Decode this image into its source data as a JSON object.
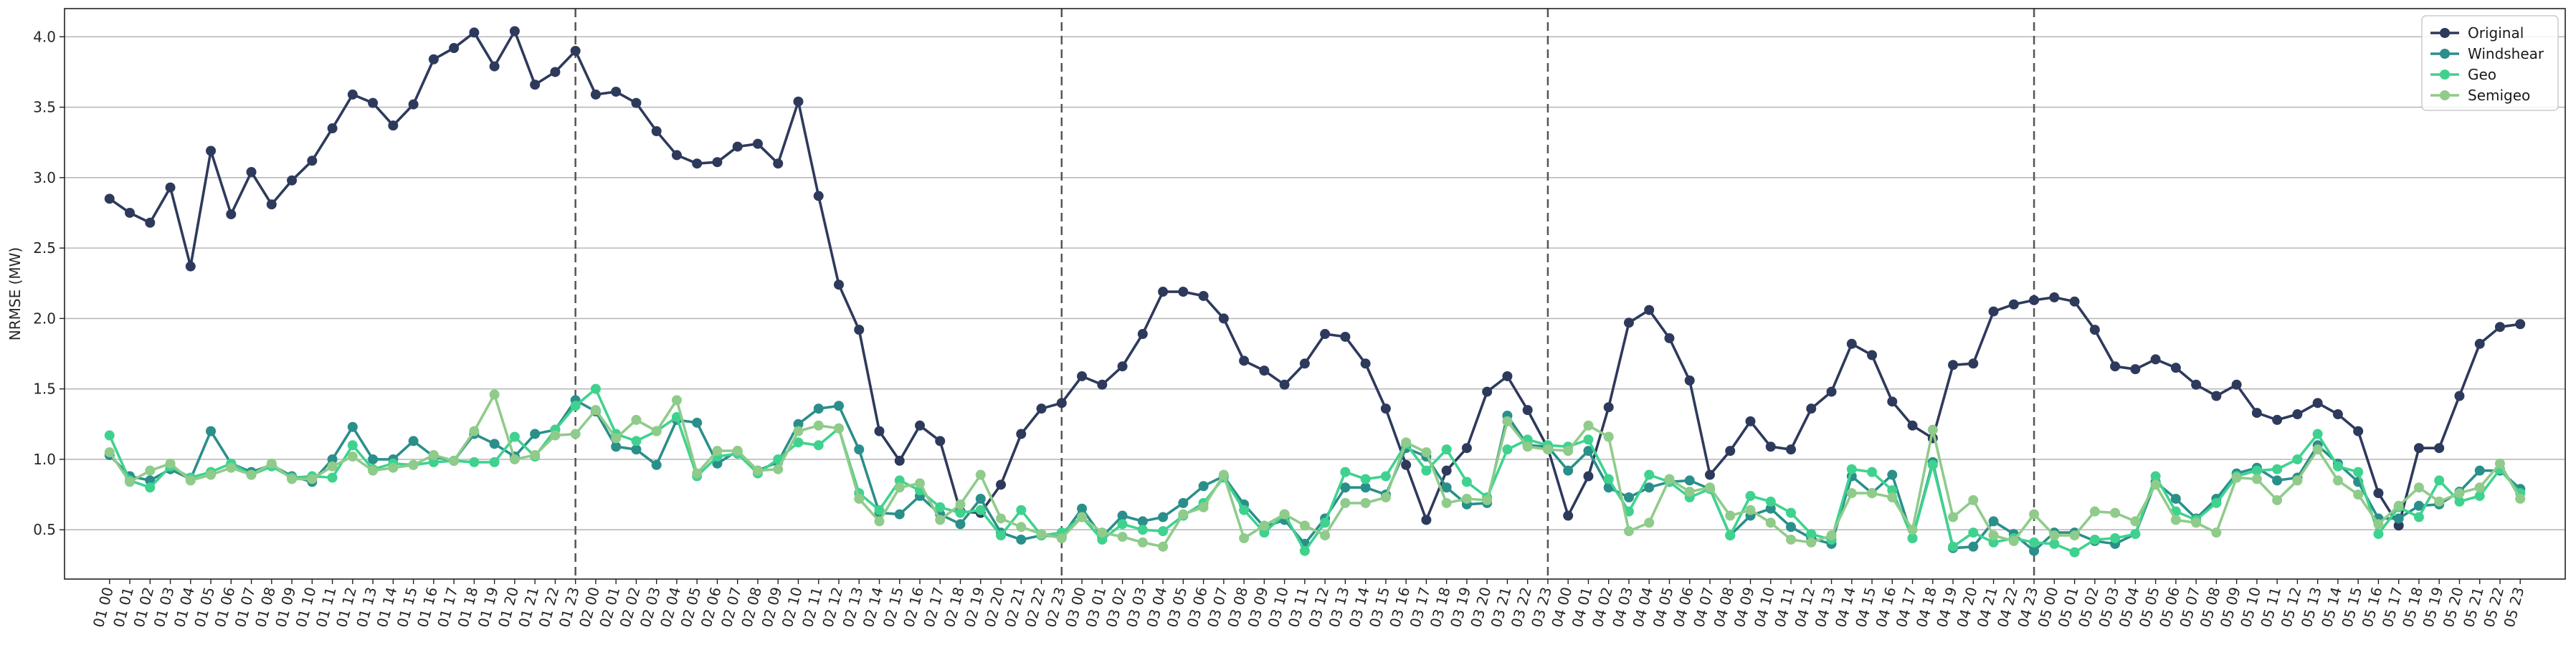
{
  "chart_data": {
    "type": "line",
    "ylabel": "NRMSE (MW)",
    "xlabel": "",
    "title": "",
    "ylim": [
      0.15,
      4.2
    ],
    "yticks": [
      0.5,
      1.0,
      1.5,
      2.0,
      2.5,
      3.0,
      3.5,
      4.0
    ],
    "ytick_labels": [
      "0.5",
      "1.0",
      "1.5",
      "2.0",
      "2.5",
      "3.0",
      "3.5",
      "4.0"
    ],
    "grid": "horizontal",
    "legend_position": "top-right",
    "x": [
      "01 00",
      "01 01",
      "01 02",
      "01 03",
      "01 04",
      "01 05",
      "01 06",
      "01 07",
      "01 08",
      "01 09",
      "01 10",
      "01 11",
      "01 12",
      "01 13",
      "01 14",
      "01 15",
      "01 16",
      "01 17",
      "01 18",
      "01 19",
      "01 20",
      "01 21",
      "01 22",
      "01 23",
      "02 00",
      "02 01",
      "02 02",
      "02 03",
      "02 04",
      "02 05",
      "02 06",
      "02 07",
      "02 08",
      "02 09",
      "02 10",
      "02 11",
      "02 12",
      "02 13",
      "02 14",
      "02 15",
      "02 16",
      "02 17",
      "02 18",
      "02 19",
      "02 20",
      "02 21",
      "02 22",
      "02 23",
      "03 00",
      "03 01",
      "03 02",
      "03 03",
      "03 04",
      "03 05",
      "03 06",
      "03 07",
      "03 08",
      "03 09",
      "03 10",
      "03 11",
      "03 12",
      "03 13",
      "03 14",
      "03 15",
      "03 16",
      "03 17",
      "03 18",
      "03 19",
      "03 20",
      "03 21",
      "03 22",
      "03 23",
      "04 00",
      "04 01",
      "04 02",
      "04 03",
      "04 04",
      "04 05",
      "04 06",
      "04 07",
      "04 08",
      "04 09",
      "04 10",
      "04 11",
      "04 12",
      "04 13",
      "04 14",
      "04 15",
      "04 16",
      "04 17",
      "04 18",
      "04 19",
      "04 20",
      "04 21",
      "04 22",
      "04 23",
      "05 00",
      "05 01",
      "05 02",
      "05 03",
      "05 04",
      "05 05",
      "05 06",
      "05 07",
      "05 08",
      "05 09",
      "05 10",
      "05 11",
      "05 12",
      "05 13",
      "05 14",
      "05 15",
      "05 16",
      "05 17",
      "05 18",
      "05 19",
      "05 20",
      "05 21",
      "05 22",
      "05 23"
    ],
    "vlines": [
      "01 23",
      "02 23",
      "03 23",
      "04 23"
    ],
    "series": [
      {
        "name": "Original",
        "color": "#2e3a5c",
        "values": [
          2.85,
          2.75,
          2.68,
          2.93,
          2.37,
          3.19,
          2.74,
          3.04,
          2.81,
          2.98,
          3.12,
          3.35,
          3.59,
          3.53,
          3.37,
          3.52,
          3.84,
          3.92,
          4.03,
          3.79,
          4.04,
          3.66,
          3.75,
          3.9,
          3.59,
          3.61,
          3.53,
          3.33,
          3.16,
          3.1,
          3.11,
          3.22,
          3.24,
          3.1,
          3.54,
          2.87,
          2.24,
          1.92,
          1.2,
          0.99,
          1.24,
          1.13,
          0.63,
          0.62,
          0.82,
          1.18,
          1.36,
          1.4,
          1.59,
          1.53,
          1.66,
          1.89,
          2.19,
          2.19,
          2.16,
          2.0,
          1.7,
          1.63,
          1.53,
          1.68,
          1.89,
          1.87,
          1.68,
          1.36,
          0.96,
          0.57,
          0.92,
          1.08,
          1.48,
          1.59,
          1.35,
          1.08,
          0.6,
          0.88,
          1.37,
          1.97,
          2.06,
          1.86,
          1.56,
          0.89,
          1.06,
          1.27,
          1.09,
          1.07,
          1.36,
          1.48,
          1.82,
          1.74,
          1.41,
          1.24,
          1.15,
          1.67,
          1.68,
          2.05,
          2.1,
          2.13,
          2.15,
          2.12,
          1.92,
          1.66,
          1.64,
          1.71,
          1.65,
          1.53,
          1.45,
          1.53,
          1.33,
          1.28,
          1.32,
          1.4,
          1.32,
          1.2,
          0.76,
          0.53,
          1.08,
          1.08,
          1.45,
          1.82,
          1.94,
          1.96
        ]
      },
      {
        "name": "Windshear",
        "color": "#2a8f8a",
        "values": [
          1.03,
          0.88,
          0.85,
          0.93,
          0.86,
          1.2,
          0.97,
          0.91,
          0.96,
          0.88,
          0.84,
          1.0,
          1.23,
          1.0,
          1.0,
          1.13,
          1.02,
          0.99,
          1.18,
          1.11,
          1.02,
          1.18,
          1.21,
          1.42,
          1.34,
          1.09,
          1.07,
          0.96,
          1.28,
          1.26,
          0.97,
          1.06,
          0.92,
          0.98,
          1.25,
          1.36,
          1.38,
          1.07,
          0.62,
          0.61,
          0.74,
          0.61,
          0.54,
          0.72,
          0.48,
          0.43,
          0.46,
          0.45,
          0.65,
          0.45,
          0.6,
          0.56,
          0.59,
          0.69,
          0.81,
          0.88,
          0.68,
          0.52,
          0.57,
          0.4,
          0.58,
          0.8,
          0.8,
          0.75,
          1.08,
          1.02,
          0.8,
          0.68,
          0.69,
          1.31,
          1.1,
          1.09,
          0.92,
          1.06,
          0.8,
          0.73,
          0.8,
          0.84,
          0.85,
          0.79,
          0.46,
          0.6,
          0.65,
          0.52,
          0.44,
          0.4,
          0.88,
          0.76,
          0.89,
          0.44,
          0.98,
          0.37,
          0.38,
          0.56,
          0.47,
          0.35,
          0.48,
          0.48,
          0.42,
          0.4,
          0.47,
          0.84,
          0.72,
          0.58,
          0.72,
          0.9,
          0.94,
          0.85,
          0.87,
          1.1,
          0.97,
          0.84,
          0.58,
          0.58,
          0.67,
          0.68,
          0.77,
          0.92,
          0.92,
          0.79
        ]
      },
      {
        "name": "Geo",
        "color": "#3fd28f",
        "values": [
          1.17,
          0.85,
          0.8,
          0.95,
          0.87,
          0.91,
          0.97,
          0.89,
          0.95,
          0.87,
          0.88,
          0.87,
          1.1,
          0.93,
          0.97,
          0.96,
          0.98,
          0.99,
          0.98,
          0.98,
          1.16,
          1.02,
          1.21,
          1.38,
          1.5,
          1.18,
          1.13,
          1.2,
          1.3,
          0.88,
          1.02,
          1.04,
          0.9,
          1.0,
          1.12,
          1.1,
          1.22,
          0.76,
          0.64,
          0.85,
          0.78,
          0.66,
          0.62,
          0.64,
          0.46,
          0.64,
          0.46,
          0.48,
          0.59,
          0.43,
          0.54,
          0.5,
          0.49,
          0.6,
          0.69,
          0.87,
          0.64,
          0.48,
          0.61,
          0.35,
          0.55,
          0.91,
          0.86,
          0.88,
          1.11,
          0.92,
          1.07,
          0.84,
          0.73,
          1.07,
          1.14,
          1.1,
          1.09,
          1.14,
          0.86,
          0.63,
          0.89,
          0.84,
          0.73,
          0.79,
          0.46,
          0.74,
          0.7,
          0.62,
          0.47,
          0.43,
          0.93,
          0.91,
          0.78,
          0.44,
          0.96,
          0.38,
          0.48,
          0.41,
          0.44,
          0.41,
          0.4,
          0.34,
          0.43,
          0.44,
          0.47,
          0.88,
          0.63,
          0.57,
          0.69,
          0.88,
          0.92,
          0.93,
          1.0,
          1.18,
          0.95,
          0.91,
          0.47,
          0.66,
          0.59,
          0.85,
          0.7,
          0.74,
          0.93,
          0.76
        ]
      },
      {
        "name": "Semigeo",
        "color": "#8fcb8a",
        "values": [
          1.05,
          0.84,
          0.92,
          0.97,
          0.85,
          0.89,
          0.94,
          0.89,
          0.97,
          0.86,
          0.86,
          0.95,
          1.02,
          0.92,
          0.94,
          0.96,
          1.03,
          0.99,
          1.2,
          1.46,
          1.0,
          1.03,
          1.17,
          1.18,
          1.35,
          1.15,
          1.28,
          1.2,
          1.42,
          0.9,
          1.06,
          1.06,
          0.92,
          0.93,
          1.2,
          1.24,
          1.22,
          0.72,
          0.56,
          0.8,
          0.83,
          0.57,
          0.68,
          0.89,
          0.58,
          0.52,
          0.47,
          0.44,
          0.59,
          0.48,
          0.45,
          0.41,
          0.38,
          0.61,
          0.66,
          0.89,
          0.44,
          0.53,
          0.61,
          0.53,
          0.46,
          0.69,
          0.69,
          0.73,
          1.12,
          1.05,
          0.69,
          0.72,
          0.71,
          1.27,
          1.09,
          1.07,
          1.06,
          1.24,
          1.16,
          0.49,
          0.55,
          0.86,
          0.77,
          0.8,
          0.6,
          0.64,
          0.55,
          0.43,
          0.41,
          0.46,
          0.76,
          0.76,
          0.73,
          0.5,
          1.21,
          0.59,
          0.71,
          0.46,
          0.42,
          0.61,
          0.46,
          0.46,
          0.63,
          0.62,
          0.56,
          0.82,
          0.57,
          0.55,
          0.48,
          0.87,
          0.86,
          0.71,
          0.85,
          1.07,
          0.85,
          0.75,
          0.54,
          0.67,
          0.8,
          0.7,
          0.76,
          0.8,
          0.97,
          0.72
        ]
      }
    ]
  }
}
